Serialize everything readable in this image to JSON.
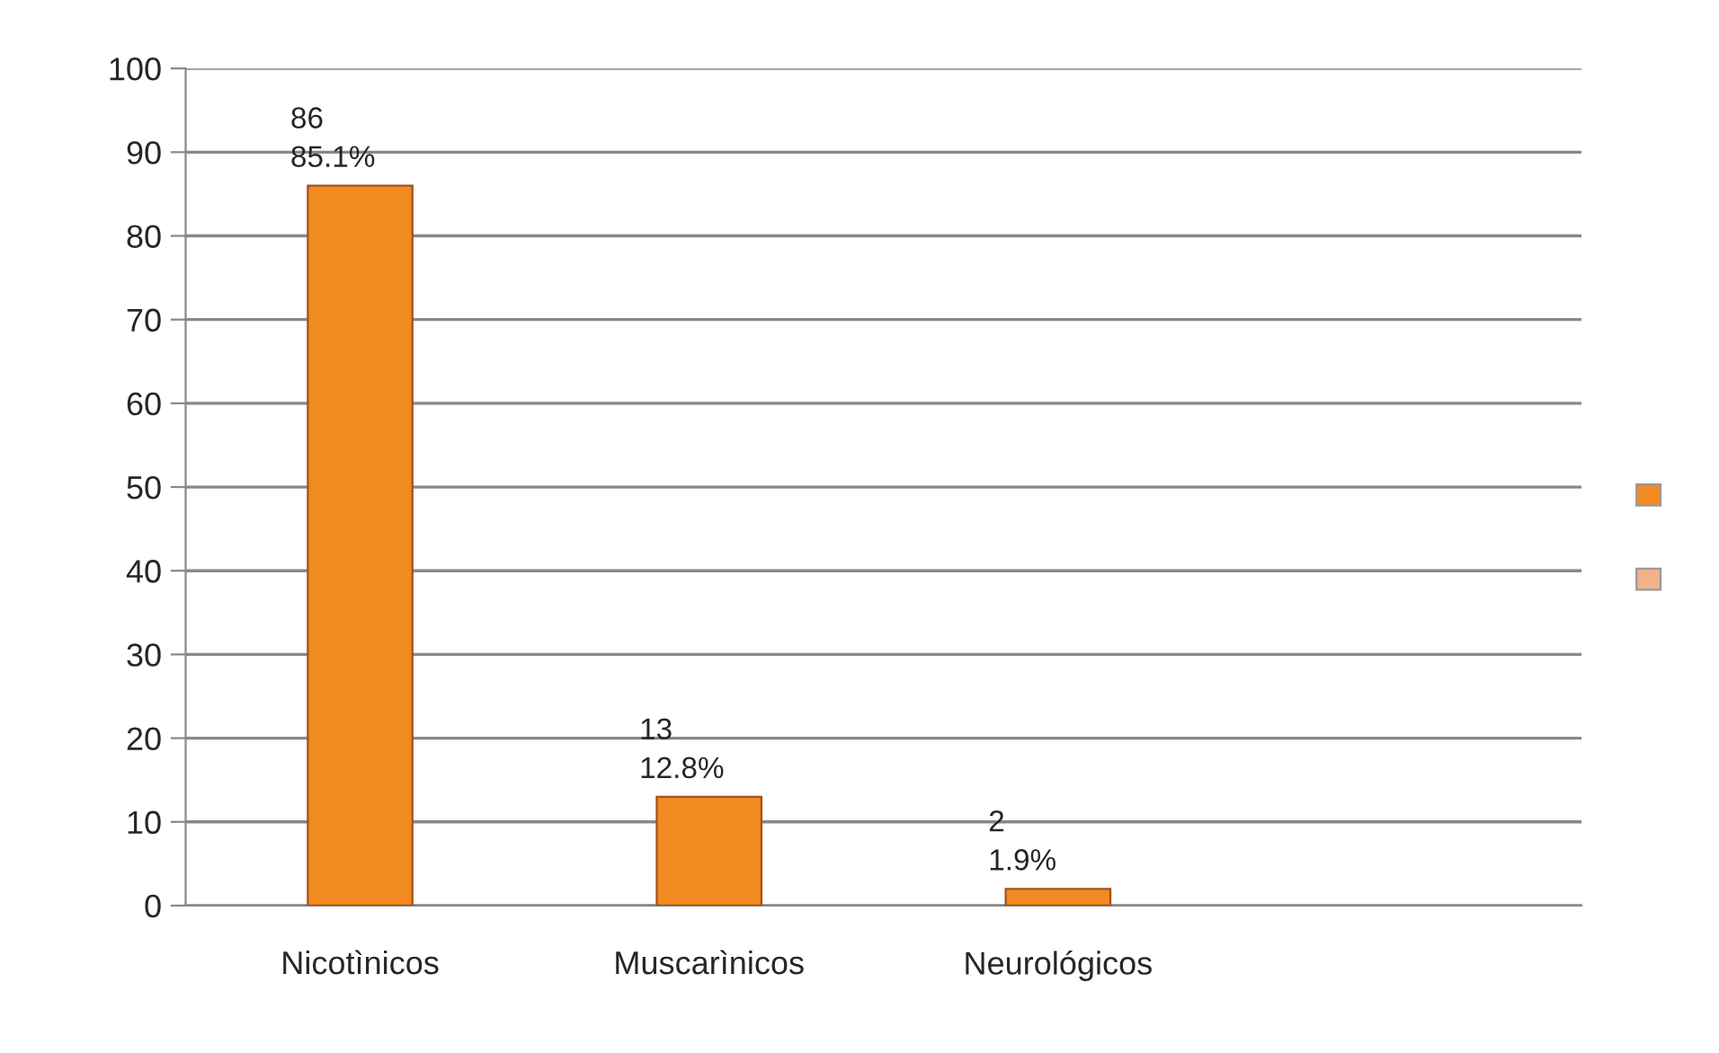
{
  "chart_data": {
    "type": "bar",
    "categories": [
      "Nicotìnicos",
      "Muscarìnicos",
      "Neurológicos",
      null
    ],
    "series": [
      {
        "color": "#f28a22",
        "values": [
          86,
          13,
          2,
          null
        ],
        "value_labels": [
          "86\n85.1%",
          "13\n12.8%",
          "2\n1.9%",
          null
        ]
      },
      {
        "color": "#f3b08c",
        "values": [
          null,
          null,
          null,
          null
        ]
      }
    ],
    "ylim": [
      0,
      100
    ],
    "yticks": [
      0,
      10,
      20,
      30,
      40,
      50,
      60,
      70,
      80,
      90,
      100
    ],
    "grid": "y"
  }
}
